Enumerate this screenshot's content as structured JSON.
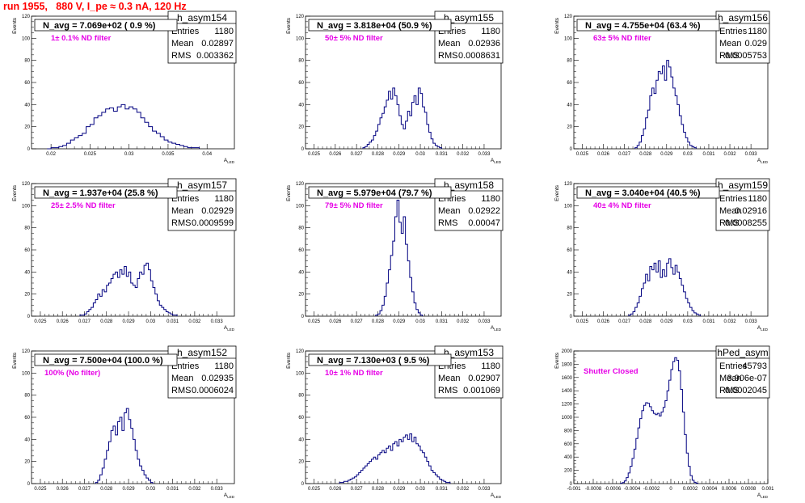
{
  "page_title": "run 1955,   880 V, I_pe ≈ 0.3 nA, 120 Hz",
  "chart_data": [
    {
      "type": "histogram",
      "hist_name": "h_asym154",
      "annotation": "N_avg = 7.069e+02 ( 0.9 %)",
      "filter_label": "1± 0.1% ND filter",
      "entries": "1180",
      "mean": "0.02897",
      "rms": "0.003362",
      "ylabel": "Events",
      "xlabel": "A_LED",
      "x_range": [
        0.0175,
        0.0435
      ],
      "y_range": [
        0,
        120
      ],
      "x_ticks": [
        "0.02",
        "0.025",
        "0.03",
        "0.035",
        "0.04"
      ],
      "x_tick_values": [
        0.02,
        0.025,
        0.03,
        0.035,
        0.04
      ],
      "y_ticks": [
        0,
        20,
        40,
        60,
        80,
        100,
        120
      ],
      "bin_width": 0.0005,
      "x_start": 0.0195,
      "values": [
        0,
        1,
        1,
        2,
        3,
        5,
        8,
        10,
        12,
        14,
        20,
        22,
        28,
        30,
        33,
        36,
        37,
        34,
        38,
        40,
        36,
        38,
        36,
        33,
        28,
        24,
        20,
        16,
        14,
        11,
        8,
        6,
        5,
        4,
        3,
        2,
        1,
        1,
        1
      ]
    },
    {
      "type": "histogram",
      "hist_name": "h_asym155",
      "annotation": "N_avg = 3.818e+04 (50.9 %)",
      "filter_label": "50± 5% ND filter",
      "entries": "1180",
      "mean": "0.02936",
      "rms": "0.0008631",
      "ylabel": "Events",
      "xlabel": "A_LED",
      "x_range": [
        0.0246,
        0.0338
      ],
      "y_range": [
        0,
        120
      ],
      "x_ticks": [
        "0.025",
        "0.026",
        "0.027",
        "0.028",
        "0.029",
        "0.03",
        "0.031",
        "0.032",
        "0.033"
      ],
      "x_tick_values": [
        0.025,
        0.026,
        0.027,
        0.028,
        0.029,
        0.03,
        0.031,
        0.032,
        0.033
      ],
      "y_ticks": [
        0,
        20,
        40,
        60,
        80,
        100,
        120
      ],
      "bin_width": 0.0001,
      "x_start": 0.0273,
      "values": [
        1,
        2,
        4,
        6,
        8,
        12,
        16,
        22,
        28,
        32,
        38,
        44,
        52,
        45,
        55,
        48,
        40,
        30,
        22,
        18,
        25,
        34,
        30,
        42,
        48,
        40,
        55,
        50,
        38,
        33,
        22,
        15,
        9,
        5,
        3,
        2,
        1
      ]
    },
    {
      "type": "histogram",
      "hist_name": "h_asym156",
      "annotation": "N_avg = 4.755e+04 (63.4 %)",
      "filter_label": "63± 5% ND filter",
      "entries": "1180",
      "mean": "0.029",
      "rms": "0.0005753",
      "ylabel": "Events",
      "xlabel": "A_LED",
      "x_range": [
        0.0246,
        0.0338
      ],
      "y_range": [
        0,
        120
      ],
      "x_ticks": [
        "0.025",
        "0.026",
        "0.027",
        "0.028",
        "0.029",
        "0.03",
        "0.031",
        "0.032",
        "0.033"
      ],
      "x_tick_values": [
        0.025,
        0.026,
        0.027,
        0.028,
        0.029,
        0.03,
        0.031,
        0.032,
        0.033
      ],
      "y_ticks": [
        0,
        20,
        40,
        60,
        80,
        100,
        120
      ],
      "bin_width": 0.0001,
      "x_start": 0.0275,
      "values": [
        1,
        3,
        6,
        12,
        18,
        28,
        35,
        48,
        55,
        50,
        62,
        70,
        68,
        75,
        62,
        80,
        74,
        65,
        55,
        48,
        40,
        30,
        22,
        15,
        10,
        6,
        3,
        2,
        1
      ]
    },
    {
      "type": "histogram",
      "hist_name": "h_asym157",
      "annotation": "N_avg = 1.937e+04 (25.8 %)",
      "filter_label": "25± 2.5% ND filter",
      "entries": "1180",
      "mean": "0.02929",
      "rms": "0.0009599",
      "ylabel": "Events",
      "xlabel": "A_LED",
      "x_range": [
        0.0246,
        0.0338
      ],
      "y_range": [
        0,
        120
      ],
      "x_ticks": [
        "0.025",
        "0.026",
        "0.027",
        "0.028",
        "0.029",
        "0.03",
        "0.031",
        "0.032",
        "0.033"
      ],
      "x_tick_values": [
        0.025,
        0.026,
        0.027,
        0.028,
        0.029,
        0.03,
        0.031,
        0.032,
        0.033
      ],
      "y_ticks": [
        0,
        20,
        40,
        60,
        80,
        100,
        120
      ],
      "bin_width": 0.0001,
      "x_start": 0.0268,
      "values": [
        1,
        1,
        2,
        4,
        6,
        8,
        12,
        15,
        20,
        18,
        24,
        22,
        28,
        30,
        34,
        38,
        40,
        35,
        42,
        38,
        45,
        36,
        40,
        30,
        28,
        26,
        34,
        40,
        38,
        46,
        48,
        42,
        32,
        26,
        20,
        14,
        10,
        8,
        6,
        4,
        3,
        2,
        1,
        1
      ]
    },
    {
      "type": "histogram",
      "hist_name": "h_asym158",
      "annotation": "N_avg = 5.979e+04 (79.7 %)",
      "filter_label": "79± 5% ND filter",
      "entries": "1180",
      "mean": "0.02922",
      "rms": "0.00047",
      "ylabel": "Events",
      "xlabel": "A_LED",
      "x_range": [
        0.0246,
        0.0338
      ],
      "y_range": [
        0,
        120
      ],
      "x_ticks": [
        "0.025",
        "0.026",
        "0.027",
        "0.028",
        "0.029",
        "0.03",
        "0.031",
        "0.032",
        "0.033"
      ],
      "x_tick_values": [
        0.025,
        0.026,
        0.027,
        0.028,
        0.029,
        0.03,
        0.031,
        0.032,
        0.033
      ],
      "y_ticks": [
        0,
        20,
        40,
        60,
        80,
        100,
        120
      ],
      "bin_width": 0.0001,
      "x_start": 0.0279,
      "values": [
        1,
        2,
        5,
        10,
        18,
        30,
        42,
        55,
        68,
        90,
        105,
        85,
        75,
        90,
        65,
        50,
        35,
        22,
        12,
        6,
        3,
        1
      ]
    },
    {
      "type": "histogram",
      "hist_name": "h_asym159",
      "annotation": "N_avg = 3.040e+04 (40.5 %)",
      "filter_label": "40± 4% ND filter",
      "entries": "1180",
      "mean": "0.02916",
      "rms": "0.0008255",
      "ylabel": "Events",
      "xlabel": "A_LED",
      "x_range": [
        0.0246,
        0.0338
      ],
      "y_range": [
        0,
        120
      ],
      "x_ticks": [
        "0.025",
        "0.026",
        "0.027",
        "0.028",
        "0.029",
        "0.03",
        "0.031",
        "0.032",
        "0.033"
      ],
      "x_tick_values": [
        0.025,
        0.026,
        0.027,
        0.028,
        0.029,
        0.03,
        0.031,
        0.032,
        0.033
      ],
      "y_ticks": [
        0,
        20,
        40,
        60,
        80,
        100,
        120
      ],
      "bin_width": 0.0001,
      "x_start": 0.0272,
      "values": [
        1,
        2,
        4,
        8,
        12,
        18,
        25,
        30,
        38,
        32,
        45,
        42,
        48,
        40,
        50,
        35,
        42,
        36,
        48,
        52,
        44,
        38,
        46,
        40,
        34,
        28,
        22,
        16,
        12,
        8,
        5,
        3,
        2,
        1
      ]
    },
    {
      "type": "histogram",
      "hist_name": "h_asym152",
      "annotation": "N_avg = 7.500e+04 (100.0 %)",
      "filter_label": "100% (No filter)",
      "entries": "1180",
      "mean": "0.02935",
      "rms": "0.0006024",
      "ylabel": "Events",
      "xlabel": "A_LED",
      "x_range": [
        0.0246,
        0.0338
      ],
      "y_range": [
        0,
        120
      ],
      "x_ticks": [
        "0.025",
        "0.026",
        "0.027",
        "0.028",
        "0.029",
        "0.03",
        "0.031",
        "0.032",
        "0.033"
      ],
      "x_tick_values": [
        0.025,
        0.026,
        0.027,
        0.028,
        0.029,
        0.03,
        0.031,
        0.032,
        0.033
      ],
      "y_ticks": [
        0,
        20,
        40,
        60,
        80,
        100,
        120
      ],
      "bin_width": 0.0001,
      "x_start": 0.0275,
      "values": [
        1,
        3,
        8,
        14,
        22,
        30,
        38,
        48,
        52,
        44,
        56,
        60,
        48,
        64,
        68,
        58,
        50,
        40,
        30,
        22,
        16,
        12,
        8,
        5,
        3,
        1
      ]
    },
    {
      "type": "histogram",
      "hist_name": "h_asym153",
      "annotation": "N_avg = 7.130e+03 ( 9.5 %)",
      "filter_label": "10± 1% ND filter",
      "entries": "1180",
      "mean": "0.02907",
      "rms": "0.001069",
      "ylabel": "Events",
      "xlabel": "A_LED",
      "x_range": [
        0.0246,
        0.0338
      ],
      "y_range": [
        0,
        120
      ],
      "x_ticks": [
        "0.025",
        "0.026",
        "0.027",
        "0.028",
        "0.029",
        "0.03",
        "0.031",
        "0.032",
        "0.033"
      ],
      "x_tick_values": [
        0.025,
        0.026,
        0.027,
        0.028,
        0.029,
        0.03,
        0.031,
        0.032,
        0.033
      ],
      "y_ticks": [
        0,
        20,
        40,
        60,
        80,
        100,
        120
      ],
      "bin_width": 0.0001,
      "x_start": 0.0262,
      "values": [
        1,
        1,
        2,
        2,
        3,
        4,
        5,
        6,
        8,
        10,
        12,
        14,
        16,
        18,
        20,
        22,
        24,
        22,
        26,
        28,
        30,
        28,
        32,
        34,
        30,
        36,
        38,
        34,
        40,
        38,
        42,
        44,
        40,
        45,
        38,
        42,
        36,
        34,
        30,
        28,
        24,
        20,
        16,
        12,
        10,
        8,
        6,
        4,
        3,
        2,
        1,
        1
      ]
    },
    {
      "type": "histogram",
      "hist_name": "hPed_asym",
      "annotation": "",
      "filter_label": "Shutter Closed",
      "entries": "45793",
      "mean": "3.906e-07",
      "rms": "0.0002045",
      "ylabel": "Events",
      "xlabel": "A_LED",
      "x_range": [
        -0.001,
        0.001
      ],
      "y_range": [
        0,
        2000
      ],
      "x_ticks": [
        "-0.001",
        "-0.0008",
        "-0.0006",
        "-0.0004",
        "-0.0002",
        "0",
        "0.0002",
        "0.0004",
        "0.0006",
        "0.0008",
        "0.001"
      ],
      "x_tick_values": [
        -0.001,
        -0.0008,
        -0.0006,
        -0.0004,
        -0.0002,
        0,
        0.0002,
        0.0004,
        0.0006,
        0.0008,
        0.001
      ],
      "y_ticks": [
        0,
        200,
        400,
        600,
        800,
        1000,
        1200,
        1400,
        1600,
        1800,
        2000
      ],
      "bin_width": 2e-05,
      "x_start": -0.00052,
      "values": [
        5,
        15,
        40,
        90,
        160,
        260,
        380,
        520,
        680,
        840,
        980,
        1100,
        1180,
        1220,
        1210,
        1160,
        1100,
        1060,
        1040,
        1060,
        1020,
        1080,
        1150,
        1250,
        1400,
        1560,
        1720,
        1840,
        1900,
        1860,
        1700,
        1420,
        1080,
        740,
        460,
        260,
        120,
        50,
        20,
        6
      ]
    }
  ]
}
